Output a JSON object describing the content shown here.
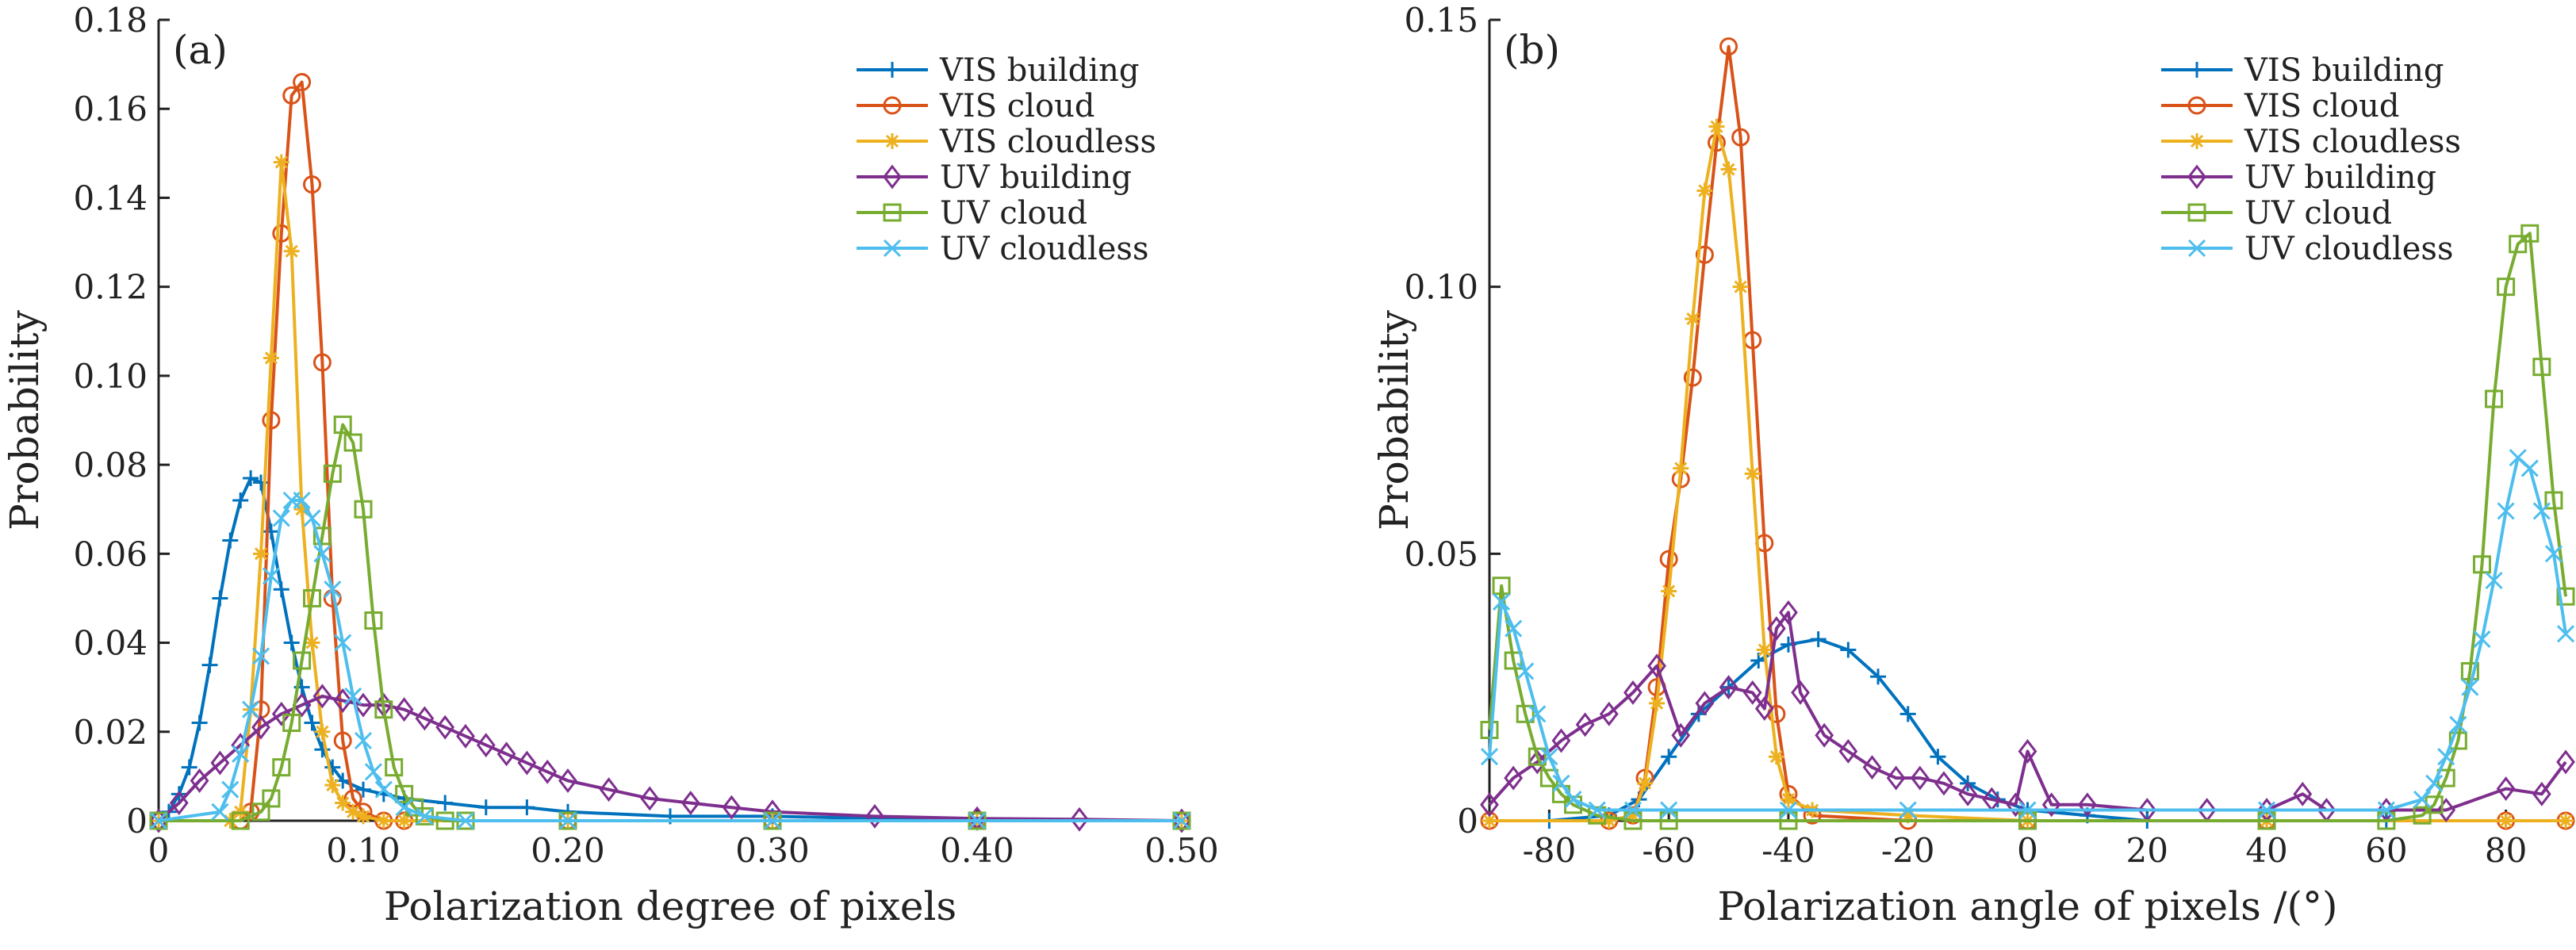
{
  "chart_data": [
    {
      "type": "line",
      "panel_label": "(a)",
      "xlabel": "Polarization degree of pixels",
      "ylabel": "Probability",
      "xlim": [
        0,
        0.5
      ],
      "ylim": [
        0,
        0.18
      ],
      "xticks": [
        0,
        0.1,
        0.2,
        0.3,
        0.4,
        0.5
      ],
      "xtick_labels": [
        "0",
        "0.10",
        "0.20",
        "0.30",
        "0.40",
        "0.50"
      ],
      "yticks": [
        0,
        0.02,
        0.04,
        0.06,
        0.08,
        0.1,
        0.12,
        0.14,
        0.16,
        0.18
      ],
      "ytick_labels": [
        "0",
        "0.02",
        "0.04",
        "0.06",
        "0.08",
        "0.10",
        "0.12",
        "0.14",
        "0.16",
        "0.18"
      ],
      "legend_position": "top-right",
      "series": [
        {
          "name": "VIS building",
          "color": "#0072BD",
          "marker": "plus",
          "x": [
            0,
            0.005,
            0.01,
            0.015,
            0.02,
            0.025,
            0.03,
            0.035,
            0.04,
            0.045,
            0.05,
            0.055,
            0.06,
            0.065,
            0.07,
            0.075,
            0.08,
            0.085,
            0.09,
            0.1,
            0.11,
            0.12,
            0.14,
            0.16,
            0.18,
            0.2,
            0.25,
            0.3,
            0.4,
            0.5
          ],
          "values": [
            0,
            0.002,
            0.006,
            0.012,
            0.022,
            0.035,
            0.05,
            0.063,
            0.072,
            0.077,
            0.076,
            0.065,
            0.052,
            0.04,
            0.03,
            0.022,
            0.016,
            0.012,
            0.009,
            0.007,
            0.006,
            0.005,
            0.004,
            0.003,
            0.003,
            0.002,
            0.001,
            0.001,
            0,
            0
          ]
        },
        {
          "name": "VIS cloud",
          "color": "#D95319",
          "marker": "circle",
          "x": [
            0,
            0.04,
            0.045,
            0.05,
            0.055,
            0.06,
            0.065,
            0.07,
            0.075,
            0.08,
            0.085,
            0.09,
            0.095,
            0.1,
            0.11,
            0.12,
            0.2,
            0.3,
            0.4,
            0.5
          ],
          "values": [
            0,
            0,
            0.002,
            0.025,
            0.09,
            0.132,
            0.163,
            0.166,
            0.143,
            0.103,
            0.05,
            0.018,
            0.005,
            0.002,
            0,
            0,
            0,
            0,
            0,
            0
          ]
        },
        {
          "name": "VIS cloudless",
          "color": "#EDB120",
          "marker": "asterisk",
          "x": [
            0,
            0.035,
            0.04,
            0.045,
            0.05,
            0.055,
            0.06,
            0.065,
            0.07,
            0.075,
            0.08,
            0.085,
            0.09,
            0.095,
            0.1,
            0.11,
            0.12,
            0.2,
            0.3,
            0.4,
            0.5
          ],
          "values": [
            0,
            0,
            0.002,
            0.025,
            0.06,
            0.104,
            0.148,
            0.128,
            0.07,
            0.04,
            0.02,
            0.008,
            0.004,
            0.002,
            0.001,
            0,
            0,
            0,
            0,
            0,
            0
          ]
        },
        {
          "name": "UV building",
          "color": "#7E2F8E",
          "marker": "diamond",
          "x": [
            0,
            0.01,
            0.02,
            0.03,
            0.04,
            0.05,
            0.06,
            0.07,
            0.08,
            0.09,
            0.1,
            0.11,
            0.12,
            0.13,
            0.14,
            0.15,
            0.16,
            0.17,
            0.18,
            0.19,
            0.2,
            0.22,
            0.24,
            0.26,
            0.28,
            0.3,
            0.35,
            0.4,
            0.45,
            0.5
          ],
          "values": [
            0,
            0.004,
            0.009,
            0.013,
            0.017,
            0.021,
            0.024,
            0.026,
            0.028,
            0.027,
            0.026,
            0.026,
            0.025,
            0.023,
            0.021,
            0.019,
            0.017,
            0.015,
            0.013,
            0.011,
            0.009,
            0.007,
            0.005,
            0.004,
            0.003,
            0.002,
            0.001,
            0.0005,
            0.0003,
            0
          ]
        },
        {
          "name": "UV cloud",
          "color": "#77AC30",
          "marker": "square",
          "x": [
            0,
            0.04,
            0.05,
            0.055,
            0.06,
            0.065,
            0.07,
            0.075,
            0.08,
            0.085,
            0.09,
            0.095,
            0.1,
            0.105,
            0.11,
            0.115,
            0.12,
            0.125,
            0.13,
            0.14,
            0.15,
            0.2,
            0.3,
            0.4,
            0.5
          ],
          "values": [
            0,
            0,
            0.002,
            0.005,
            0.012,
            0.022,
            0.036,
            0.05,
            0.064,
            0.078,
            0.089,
            0.085,
            0.07,
            0.045,
            0.025,
            0.012,
            0.006,
            0.003,
            0.001,
            0,
            0,
            0,
            0,
            0,
            0
          ]
        },
        {
          "name": "UV cloudless",
          "color": "#4DBEEE",
          "marker": "x",
          "x": [
            0,
            0.03,
            0.035,
            0.04,
            0.045,
            0.05,
            0.055,
            0.06,
            0.065,
            0.07,
            0.075,
            0.08,
            0.085,
            0.09,
            0.095,
            0.1,
            0.105,
            0.11,
            0.12,
            0.13,
            0.15,
            0.2,
            0.3,
            0.4,
            0.5
          ],
          "values": [
            0,
            0.002,
            0.007,
            0.015,
            0.025,
            0.037,
            0.055,
            0.068,
            0.072,
            0.072,
            0.068,
            0.06,
            0.052,
            0.04,
            0.028,
            0.018,
            0.011,
            0.007,
            0.003,
            0.001,
            0,
            0,
            0,
            0,
            0
          ]
        }
      ]
    },
    {
      "type": "line",
      "panel_label": "(b)",
      "xlabel": "Polarization angle of pixels /(°)",
      "ylabel": "Probability",
      "xlim": [
        -90,
        90
      ],
      "ylim": [
        0,
        0.15
      ],
      "xticks": [
        -80,
        -60,
        -40,
        -20,
        0,
        20,
        40,
        60,
        80
      ],
      "xtick_labels": [
        "-80",
        "-60",
        "-40",
        "-20",
        "0",
        "20",
        "40",
        "60",
        "80"
      ],
      "yticks": [
        0,
        0.05,
        0.1,
        0.15
      ],
      "ytick_labels": [
        "0",
        "0.05",
        "0.10",
        "0.15"
      ],
      "legend_position": "top-right",
      "series": [
        {
          "name": "VIS building",
          "color": "#0072BD",
          "marker": "plus",
          "x": [
            -90,
            -80,
            -70,
            -65,
            -60,
            -55,
            -50,
            -45,
            -40,
            -35,
            -30,
            -25,
            -20,
            -15,
            -10,
            -5,
            0,
            10,
            20,
            40,
            60,
            80,
            90
          ],
          "values": [
            0,
            0,
            0.001,
            0.004,
            0.012,
            0.02,
            0.025,
            0.03,
            0.033,
            0.034,
            0.032,
            0.027,
            0.02,
            0.012,
            0.007,
            0.004,
            0.002,
            0.001,
            0,
            0,
            0,
            0,
            0
          ]
        },
        {
          "name": "VIS cloud",
          "color": "#D95319",
          "marker": "circle",
          "x": [
            -90,
            -70,
            -66,
            -64,
            -62,
            -60,
            -58,
            -56,
            -54,
            -52,
            -50,
            -48,
            -46,
            -44,
            -42,
            -40,
            -36,
            -20,
            0,
            40,
            80,
            90
          ],
          "values": [
            0,
            0,
            0.001,
            0.008,
            0.025,
            0.049,
            0.064,
            0.083,
            0.106,
            0.127,
            0.145,
            0.128,
            0.09,
            0.052,
            0.02,
            0.005,
            0.001,
            0,
            0,
            0,
            0,
            0
          ]
        },
        {
          "name": "VIS cloudless",
          "color": "#EDB120",
          "marker": "asterisk",
          "x": [
            -90,
            -70,
            -66,
            -64,
            -62,
            -60,
            -58,
            -56,
            -54,
            -52,
            -50,
            -48,
            -46,
            -44,
            -42,
            -40,
            -36,
            -20,
            0,
            40,
            80,
            90
          ],
          "values": [
            0,
            0,
            0.001,
            0.007,
            0.022,
            0.043,
            0.066,
            0.094,
            0.118,
            0.13,
            0.122,
            0.1,
            0.065,
            0.032,
            0.012,
            0.004,
            0.002,
            0.001,
            0,
            0,
            0,
            0
          ]
        },
        {
          "name": "UV building",
          "color": "#7E2F8E",
          "marker": "diamond",
          "x": [
            -90,
            -86,
            -82,
            -78,
            -74,
            -70,
            -66,
            -62,
            -58,
            -54,
            -50,
            -46,
            -44,
            -42,
            -40,
            -38,
            -34,
            -30,
            -26,
            -22,
            -18,
            -14,
            -10,
            -6,
            -2,
            0,
            4,
            10,
            20,
            30,
            40,
            46,
            50,
            60,
            70,
            80,
            86,
            90
          ],
          "values": [
            0.003,
            0.008,
            0.011,
            0.015,
            0.018,
            0.02,
            0.024,
            0.029,
            0.016,
            0.022,
            0.025,
            0.024,
            0.021,
            0.036,
            0.039,
            0.024,
            0.016,
            0.013,
            0.01,
            0.008,
            0.008,
            0.007,
            0.005,
            0.004,
            0.003,
            0.013,
            0.003,
            0.003,
            0.002,
            0.002,
            0.002,
            0.005,
            0.002,
            0.002,
            0.002,
            0.006,
            0.005,
            0.011
          ]
        },
        {
          "name": "UV cloud",
          "color": "#77AC30",
          "marker": "square",
          "x": [
            -90,
            -88,
            -86,
            -84,
            -82,
            -80,
            -78,
            -76,
            -72,
            -66,
            -60,
            -40,
            0,
            40,
            60,
            66,
            68,
            70,
            72,
            74,
            76,
            78,
            80,
            82,
            84,
            86,
            88,
            90
          ],
          "values": [
            0.017,
            0.044,
            0.03,
            0.02,
            0.012,
            0.008,
            0.005,
            0.003,
            0.001,
            0,
            0,
            0,
            0,
            0,
            0,
            0.001,
            0.003,
            0.008,
            0.015,
            0.028,
            0.048,
            0.079,
            0.1,
            0.108,
            0.11,
            0.085,
            0.06,
            0.042
          ]
        },
        {
          "name": "UV cloudless",
          "color": "#4DBEEE",
          "marker": "x",
          "x": [
            -90,
            -88,
            -86,
            -84,
            -82,
            -80,
            -78,
            -76,
            -72,
            -66,
            -60,
            -40,
            -20,
            0,
            40,
            60,
            66,
            68,
            70,
            72,
            74,
            76,
            78,
            80,
            82,
            84,
            86,
            88,
            90
          ],
          "values": [
            0.012,
            0.041,
            0.036,
            0.028,
            0.02,
            0.012,
            0.007,
            0.004,
            0.002,
            0.002,
            0.002,
            0.002,
            0.002,
            0.002,
            0.002,
            0.002,
            0.004,
            0.007,
            0.012,
            0.018,
            0.025,
            0.034,
            0.045,
            0.058,
            0.068,
            0.066,
            0.058,
            0.05,
            0.035
          ]
        }
      ]
    }
  ]
}
